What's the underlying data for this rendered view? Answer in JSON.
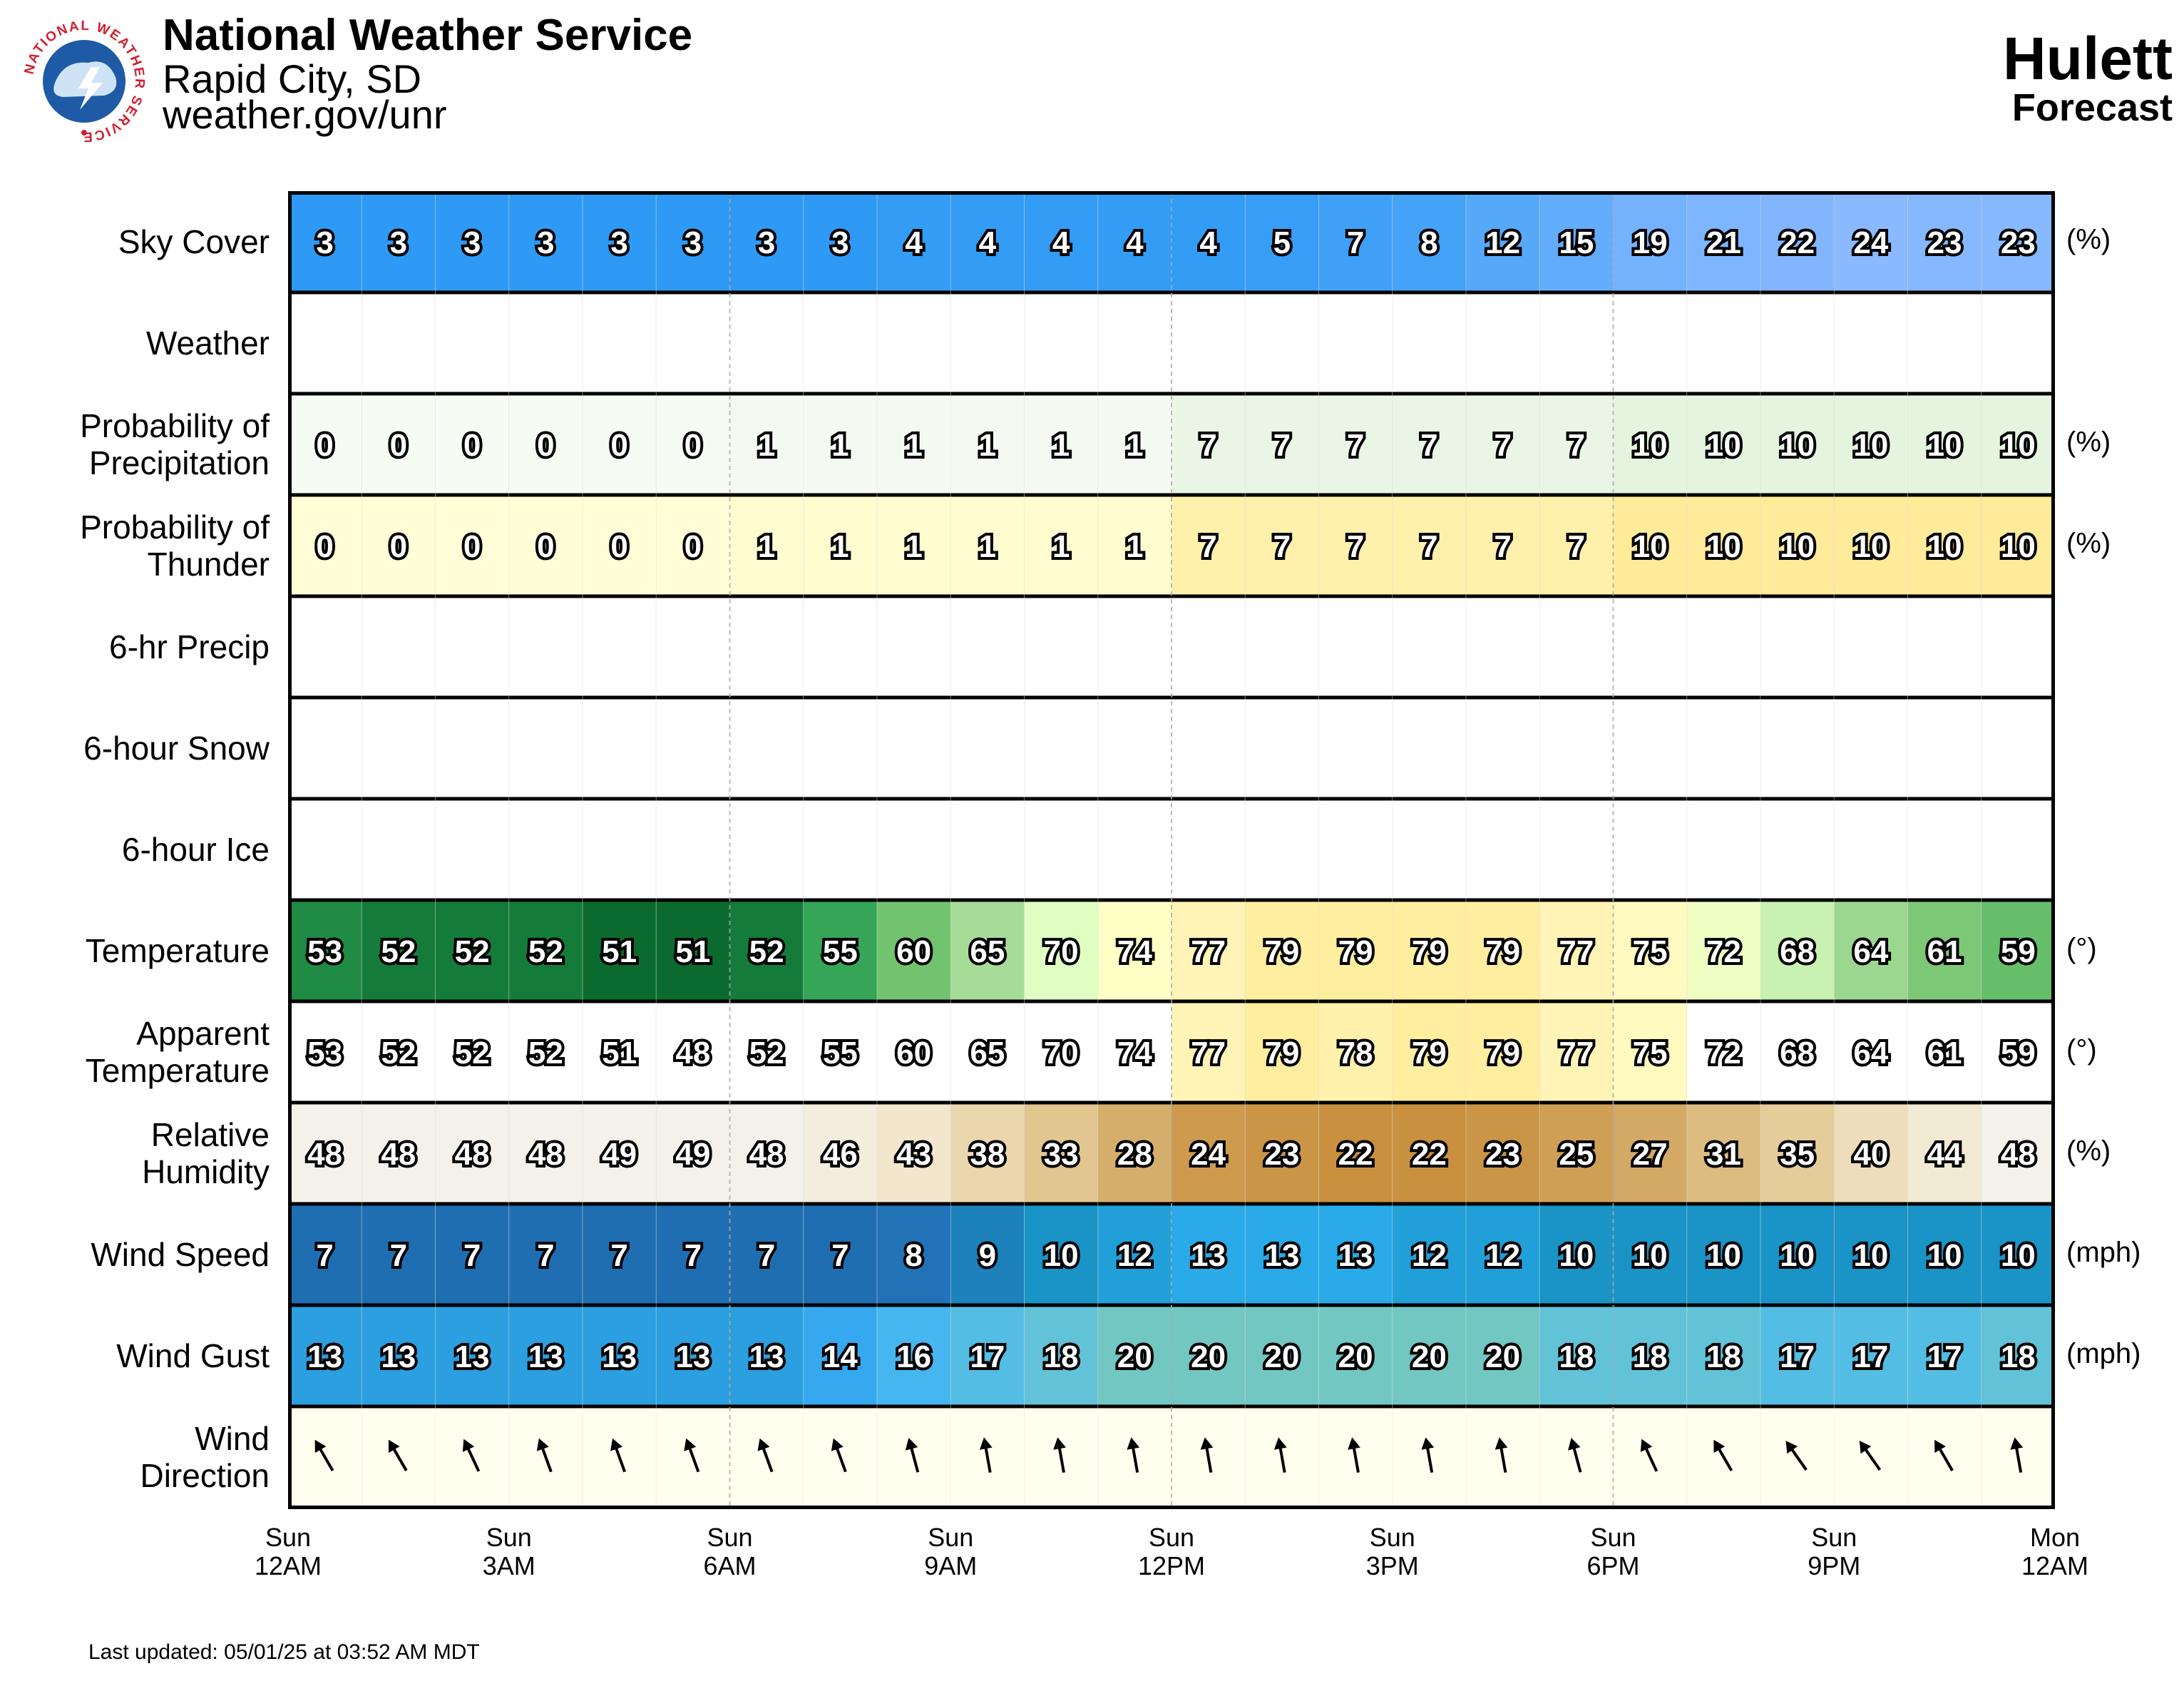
{
  "header": {
    "title": "National Weather Service",
    "office": "Rapid City, SD",
    "url": "weather.gov/unr",
    "logo_text": "NATIONAL WEATHER SERVICE",
    "location": "Hulett",
    "product": "Forecast"
  },
  "footer": {
    "last_updated": "Last updated: 05/01/25 at 03:52 AM MDT"
  },
  "chart_data": {
    "type": "table",
    "hours": 24,
    "time_axis": [
      {
        "day": "Sun",
        "time": "12AM"
      },
      {
        "day": "Sun",
        "time": "3AM"
      },
      {
        "day": "Sun",
        "time": "6AM"
      },
      {
        "day": "Sun",
        "time": "9AM"
      },
      {
        "day": "Sun",
        "time": "12PM"
      },
      {
        "day": "Sun",
        "time": "3PM"
      },
      {
        "day": "Sun",
        "time": "6PM"
      },
      {
        "day": "Sun",
        "time": "9PM"
      },
      {
        "day": "Mon",
        "time": "12AM"
      }
    ],
    "rows": [
      {
        "label": [
          "Sky Cover"
        ],
        "unit": "(%)",
        "kind": "sky",
        "values": [
          3,
          3,
          3,
          3,
          3,
          3,
          3,
          3,
          4,
          4,
          4,
          4,
          4,
          5,
          7,
          8,
          12,
          15,
          19,
          21,
          22,
          24,
          23,
          23
        ]
      },
      {
        "label": [
          "Weather"
        ],
        "unit": "",
        "kind": "empty",
        "values": []
      },
      {
        "label": [
          "Probability of",
          "Precipitation"
        ],
        "unit": "(%)",
        "kind": "pop",
        "values": [
          0,
          0,
          0,
          0,
          0,
          0,
          1,
          1,
          1,
          1,
          1,
          1,
          7,
          7,
          7,
          7,
          7,
          7,
          10,
          10,
          10,
          10,
          10,
          10
        ]
      },
      {
        "label": [
          "Probability of",
          "Thunder"
        ],
        "unit": "(%)",
        "kind": "thunder",
        "values": [
          0,
          0,
          0,
          0,
          0,
          0,
          1,
          1,
          1,
          1,
          1,
          1,
          7,
          7,
          7,
          7,
          7,
          7,
          10,
          10,
          10,
          10,
          10,
          10
        ]
      },
      {
        "label": [
          "6-hr Precip"
        ],
        "unit": "",
        "kind": "empty",
        "values": []
      },
      {
        "label": [
          "6-hour Snow"
        ],
        "unit": "",
        "kind": "empty",
        "values": []
      },
      {
        "label": [
          "6-hour Ice"
        ],
        "unit": "",
        "kind": "empty",
        "values": []
      },
      {
        "label": [
          "Temperature"
        ],
        "unit": "(°)",
        "kind": "temp",
        "values": [
          53,
          52,
          52,
          52,
          51,
          51,
          52,
          55,
          60,
          65,
          70,
          74,
          77,
          79,
          79,
          79,
          79,
          77,
          75,
          72,
          68,
          64,
          61,
          59
        ]
      },
      {
        "label": [
          "Apparent",
          "Temperature"
        ],
        "unit": "(°)",
        "kind": "apparent",
        "values": [
          53,
          52,
          52,
          52,
          51,
          48,
          52,
          55,
          60,
          65,
          70,
          74,
          77,
          79,
          78,
          79,
          79,
          77,
          75,
          72,
          68,
          64,
          61,
          59
        ]
      },
      {
        "label": [
          "Relative",
          "Humidity"
        ],
        "unit": "(%)",
        "kind": "rh",
        "values": [
          48,
          48,
          48,
          48,
          49,
          49,
          48,
          46,
          43,
          38,
          33,
          28,
          24,
          23,
          22,
          22,
          23,
          25,
          27,
          31,
          35,
          40,
          44,
          48
        ]
      },
      {
        "label": [
          "Wind Speed"
        ],
        "unit": "(mph)",
        "kind": "wind",
        "values": [
          7,
          7,
          7,
          7,
          7,
          7,
          7,
          7,
          8,
          9,
          10,
          12,
          13,
          13,
          13,
          12,
          12,
          10,
          10,
          10,
          10,
          10,
          10,
          10
        ]
      },
      {
        "label": [
          "Wind Gust"
        ],
        "unit": "(mph)",
        "kind": "gust",
        "values": [
          13,
          13,
          13,
          13,
          13,
          13,
          13,
          14,
          16,
          17,
          18,
          20,
          20,
          20,
          20,
          20,
          20,
          18,
          18,
          18,
          17,
          17,
          17,
          18
        ]
      },
      {
        "label": [
          "Wind",
          "Direction"
        ],
        "unit": "",
        "kind": "direction",
        "values": [
          150,
          150,
          155,
          160,
          160,
          160,
          160,
          160,
          165,
          170,
          170,
          170,
          170,
          170,
          170,
          170,
          170,
          165,
          155,
          150,
          145,
          145,
          150,
          170
        ]
      }
    ]
  },
  "colors": {
    "sky": [
      "#2196f3",
      "#8ab9ff"
    ],
    "pop_bg": [
      "#f6fbf4",
      "#e5f4df"
    ],
    "thunder_bg": [
      "#fffed6",
      "#ffeb9a"
    ],
    "temp_scale": [
      {
        "t": 51,
        "c": "#0b6b2e"
      },
      {
        "t": 53,
        "c": "#1f8b45"
      },
      {
        "t": 55,
        "c": "#35a558"
      },
      {
        "t": 60,
        "c": "#72c36f"
      },
      {
        "t": 65,
        "c": "#a7dc98"
      },
      {
        "t": 70,
        "c": "#dfffc2"
      },
      {
        "t": 74,
        "c": "#ffffc6"
      },
      {
        "t": 77,
        "c": "#fff3b5"
      },
      {
        "t": 79,
        "c": "#ffeea0"
      }
    ],
    "rh_scale": [
      {
        "t": 22,
        "c": "#c9903f"
      },
      {
        "t": 28,
        "c": "#d6ae6c"
      },
      {
        "t": 33,
        "c": "#e2c68f"
      },
      {
        "t": 38,
        "c": "#ead7ae"
      },
      {
        "t": 43,
        "c": "#f2e7cd"
      },
      {
        "t": 48,
        "c": "#f3f1e9"
      }
    ],
    "wind_scale": [
      {
        "t": 7,
        "c": "#1f6eb2"
      },
      {
        "t": 8,
        "c": "#2272b8"
      },
      {
        "t": 9,
        "c": "#1d82bb"
      },
      {
        "t": 10,
        "c": "#1a93c6"
      },
      {
        "t": 12,
        "c": "#219fd8"
      },
      {
        "t": 13,
        "c": "#2aaae8"
      }
    ],
    "gust_scale": [
      {
        "t": 13,
        "c": "#2b9fe0"
      },
      {
        "t": 14,
        "c": "#36a8f0"
      },
      {
        "t": 16,
        "c": "#45b6f0"
      },
      {
        "t": 17,
        "c": "#54bde3"
      },
      {
        "t": 18,
        "c": "#62c2d8"
      },
      {
        "t": 20,
        "c": "#72c7c2"
      }
    ],
    "direction_bg": "#fffff0",
    "apparent_hot": "#fff3b5",
    "grid_line": "#000000"
  }
}
